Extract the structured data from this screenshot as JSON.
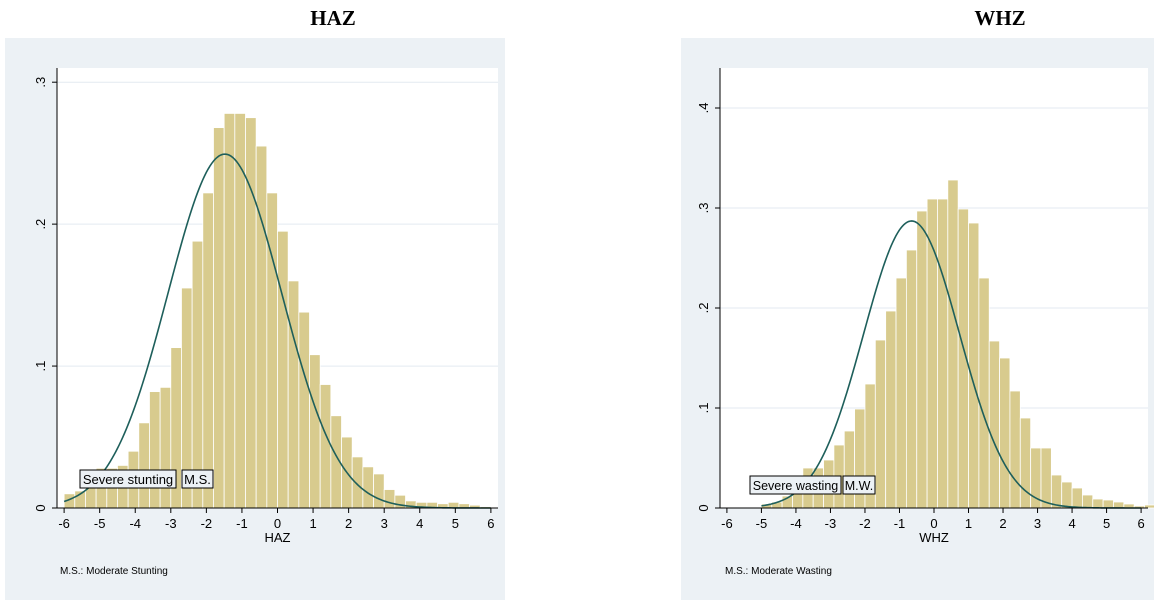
{
  "chart_data": [
    {
      "type": "bar",
      "title": "HAZ",
      "xlabel": "HAZ",
      "ylabel": "",
      "xlim": [
        -6.2,
        6.2
      ],
      "ylim": [
        0,
        0.31
      ],
      "x_ticks": [
        "-6",
        "-5",
        "-4",
        "-3",
        "-2",
        "-1",
        "0",
        "1",
        "2",
        "3",
        "4",
        "5",
        "6"
      ],
      "y_ticks": [
        "0",
        ".1",
        ".2",
        ".3"
      ],
      "grid": true,
      "bin_start": -6.0,
      "bin_width": 0.3,
      "densities": [
        0.01,
        0.012,
        0.018,
        0.028,
        0.028,
        0.03,
        0.04,
        0.06,
        0.082,
        0.085,
        0.113,
        0.155,
        0.188,
        0.222,
        0.268,
        0.278,
        0.278,
        0.275,
        0.255,
        0.222,
        0.195,
        0.16,
        0.138,
        0.108,
        0.087,
        0.065,
        0.05,
        0.036,
        0.029,
        0.024,
        0.013,
        0.009,
        0.005,
        0.004,
        0.004,
        0.003,
        0.004,
        0.003,
        0.002,
        0.001
      ],
      "normal_curve": {
        "mean": -1.48,
        "sd": 1.6
      },
      "annotations": [
        "Severe stunting",
        "M.S."
      ],
      "note": "M.S.: Moderate Stunting",
      "colors": {
        "bars": "#d8cb8e",
        "bar_edge": "#ffffff",
        "curve": "#1e5f5b",
        "plot_bg": "#ffffff",
        "outer_bg": "#ecf1f5",
        "grid": "#e3eaf0"
      }
    },
    {
      "type": "bar",
      "title": "WHZ",
      "xlabel": "WHZ",
      "ylabel": "",
      "xlim": [
        -6.2,
        6.2
      ],
      "ylim": [
        0,
        0.44
      ],
      "x_ticks": [
        "-6",
        "-5",
        "-4",
        "-3",
        "-2",
        "-1",
        "0",
        "1",
        "2",
        "3",
        "4",
        "5",
        "6"
      ],
      "y_ticks": [
        "0",
        ".1",
        ".2",
        ".3",
        ".4"
      ],
      "grid": true,
      "bin_start": -5.0,
      "bin_width": 0.3,
      "densities": [
        0.004,
        0.006,
        0.012,
        0.02,
        0.04,
        0.04,
        0.048,
        0.063,
        0.077,
        0.099,
        0.124,
        0.168,
        0.197,
        0.23,
        0.258,
        0.297,
        0.309,
        0.309,
        0.328,
        0.299,
        0.285,
        0.23,
        0.167,
        0.15,
        0.117,
        0.09,
        0.06,
        0.06,
        0.033,
        0.026,
        0.02,
        0.013,
        0.009,
        0.008,
        0.006,
        0.004,
        0.002,
        0.003
      ],
      "normal_curve": {
        "mean": -0.65,
        "sd": 1.39
      },
      "annotations": [
        "Severe wasting",
        "M.W."
      ],
      "note": "M.S.: Moderate Wasting",
      "colors": {
        "bars": "#d8cb8e",
        "bar_edge": "#ffffff",
        "curve": "#1e5f5b",
        "plot_bg": "#ffffff",
        "outer_bg": "#ecf1f5",
        "grid": "#e3eaf0"
      }
    }
  ]
}
